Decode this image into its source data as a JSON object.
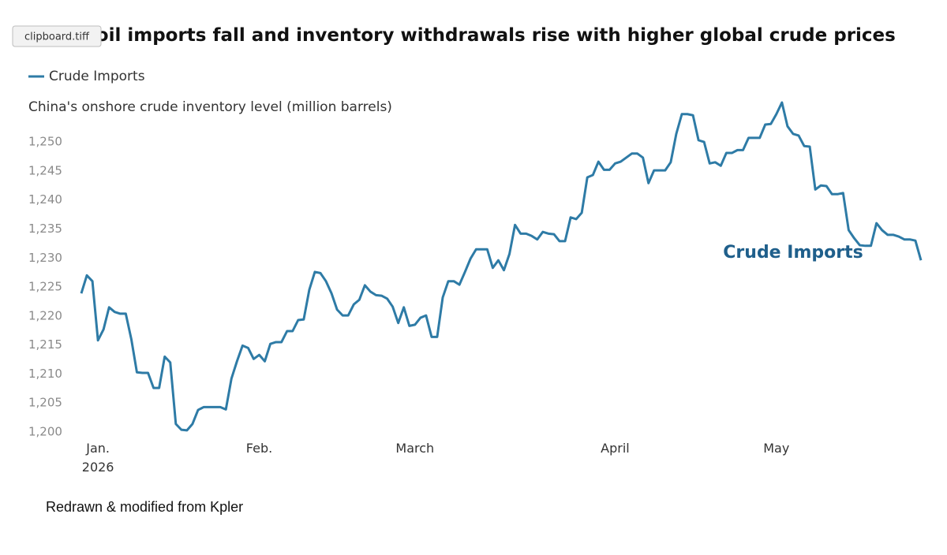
{
  "tooltip": "clipboard.tiff",
  "chart_data": {
    "type": "line",
    "title": "China's oil imports fall and inventory withdrawals rise with higher global crude prices",
    "ylabel": "China's onshore crude inventory level (million barrels)",
    "source": "Redrawn & modified from Kpler",
    "year": "2026",
    "legend": "top-left",
    "grid": false,
    "annotations": [
      {
        "text": "Crude Imports"
      }
    ],
    "ylim": [
      1199,
      1258
    ],
    "yticks": [
      {
        "value": 1200,
        "label": "1,200"
      },
      {
        "value": 1205,
        "label": "1,205"
      },
      {
        "value": 1210,
        "label": "1,210"
      },
      {
        "value": 1215,
        "label": "1,215"
      },
      {
        "value": 1220,
        "label": "1,220"
      },
      {
        "value": 1225,
        "label": "1,225"
      },
      {
        "value": 1230,
        "label": "1,230"
      },
      {
        "value": 1235,
        "label": "1,235"
      },
      {
        "value": 1240,
        "label": "1,240"
      },
      {
        "value": 1245,
        "label": "1,245"
      },
      {
        "value": 1250,
        "label": "1,250"
      }
    ],
    "categories": [
      null,
      null,
      null,
      "Jan.",
      null,
      null,
      null,
      null,
      null,
      null,
      null,
      null,
      null,
      null,
      null,
      null,
      null,
      null,
      null,
      null,
      null,
      null,
      null,
      null,
      null,
      null,
      null,
      null,
      null,
      null,
      null,
      null,
      "Feb.",
      null,
      null,
      null,
      null,
      null,
      null,
      null,
      null,
      null,
      null,
      null,
      null,
      null,
      null,
      null,
      null,
      null,
      null,
      null,
      null,
      null,
      null,
      null,
      null,
      null,
      null,
      null,
      "March",
      null,
      null,
      null,
      null,
      null,
      null,
      null,
      null,
      null,
      null,
      null,
      null,
      null,
      null,
      null,
      null,
      null,
      null,
      null,
      null,
      null,
      null,
      null,
      null,
      null,
      null,
      null,
      null,
      null,
      null,
      null,
      null,
      null,
      null,
      null,
      "April",
      null,
      null,
      null,
      null,
      null,
      null,
      null,
      null,
      null,
      null,
      null,
      null,
      null,
      null,
      null,
      null,
      null,
      null,
      null,
      null,
      null,
      null,
      null,
      null,
      null,
      null,
      null,
      null,
      "May",
      null,
      null,
      null,
      null,
      null,
      null,
      null,
      null,
      null,
      null,
      null,
      null,
      null,
      null,
      null,
      null,
      null,
      null,
      null,
      null,
      null,
      null,
      null,
      null,
      null,
      null
    ],
    "series": [
      {
        "name": "Crude Imports",
        "color": "#2e7ba6",
        "values": [
          1223.9,
          1227.0,
          1226.0,
          1215.8,
          1217.7,
          1221.5,
          1220.7,
          1220.4,
          1220.4,
          1216.0,
          1210.3,
          1210.2,
          1210.2,
          1207.6,
          1207.6,
          1213.0,
          1212.0,
          1201.4,
          1200.4,
          1200.3,
          1201.4,
          1203.8,
          1204.3,
          1204.3,
          1204.3,
          1204.3,
          1203.9,
          1209.2,
          1212.2,
          1214.9,
          1214.5,
          1212.6,
          1213.3,
          1212.2,
          1215.2,
          1215.5,
          1215.5,
          1217.4,
          1217.4,
          1219.3,
          1219.4,
          1224.5,
          1227.6,
          1227.4,
          1226.0,
          1223.9,
          1221.1,
          1220.1,
          1220.1,
          1222.0,
          1222.8,
          1225.3,
          1224.2,
          1223.6,
          1223.5,
          1223.0,
          1221.6,
          1218.8,
          1221.5,
          1218.3,
          1218.5,
          1219.7,
          1220.1,
          1216.4,
          1216.4,
          1223.2,
          1226.0,
          1226.0,
          1225.4,
          1227.6,
          1229.9,
          1231.5,
          1231.5,
          1231.5,
          1228.3,
          1229.6,
          1227.9,
          1230.7,
          1235.7,
          1234.2,
          1234.2,
          1233.8,
          1233.2,
          1234.5,
          1234.2,
          1234.1,
          1232.9,
          1232.9,
          1237.0,
          1236.7,
          1237.8,
          1243.9,
          1244.3,
          1246.6,
          1245.2,
          1245.2,
          1246.3,
          1246.6,
          1247.3,
          1248.0,
          1248.0,
          1247.3,
          1242.9,
          1245.1,
          1245.1,
          1245.1,
          1246.5,
          1251.4,
          1254.8,
          1254.8,
          1254.6,
          1250.3,
          1250.0,
          1246.3,
          1246.5,
          1245.9,
          1248.1,
          1248.1,
          1248.6,
          1248.6,
          1250.7,
          1250.7,
          1250.7,
          1253.0,
          1253.1,
          1254.8,
          1256.8,
          1252.7,
          1251.4,
          1251.1,
          1249.3,
          1249.2,
          1241.8,
          1242.5,
          1242.4,
          1241.0,
          1241.0,
          1241.2,
          1234.8,
          1233.4,
          1232.2,
          1232.1,
          1232.1,
          1236.0,
          1234.8,
          1234.0,
          1234.0,
          1233.7,
          1233.2,
          1233.2,
          1233.0,
          1229.6
        ]
      }
    ]
  }
}
